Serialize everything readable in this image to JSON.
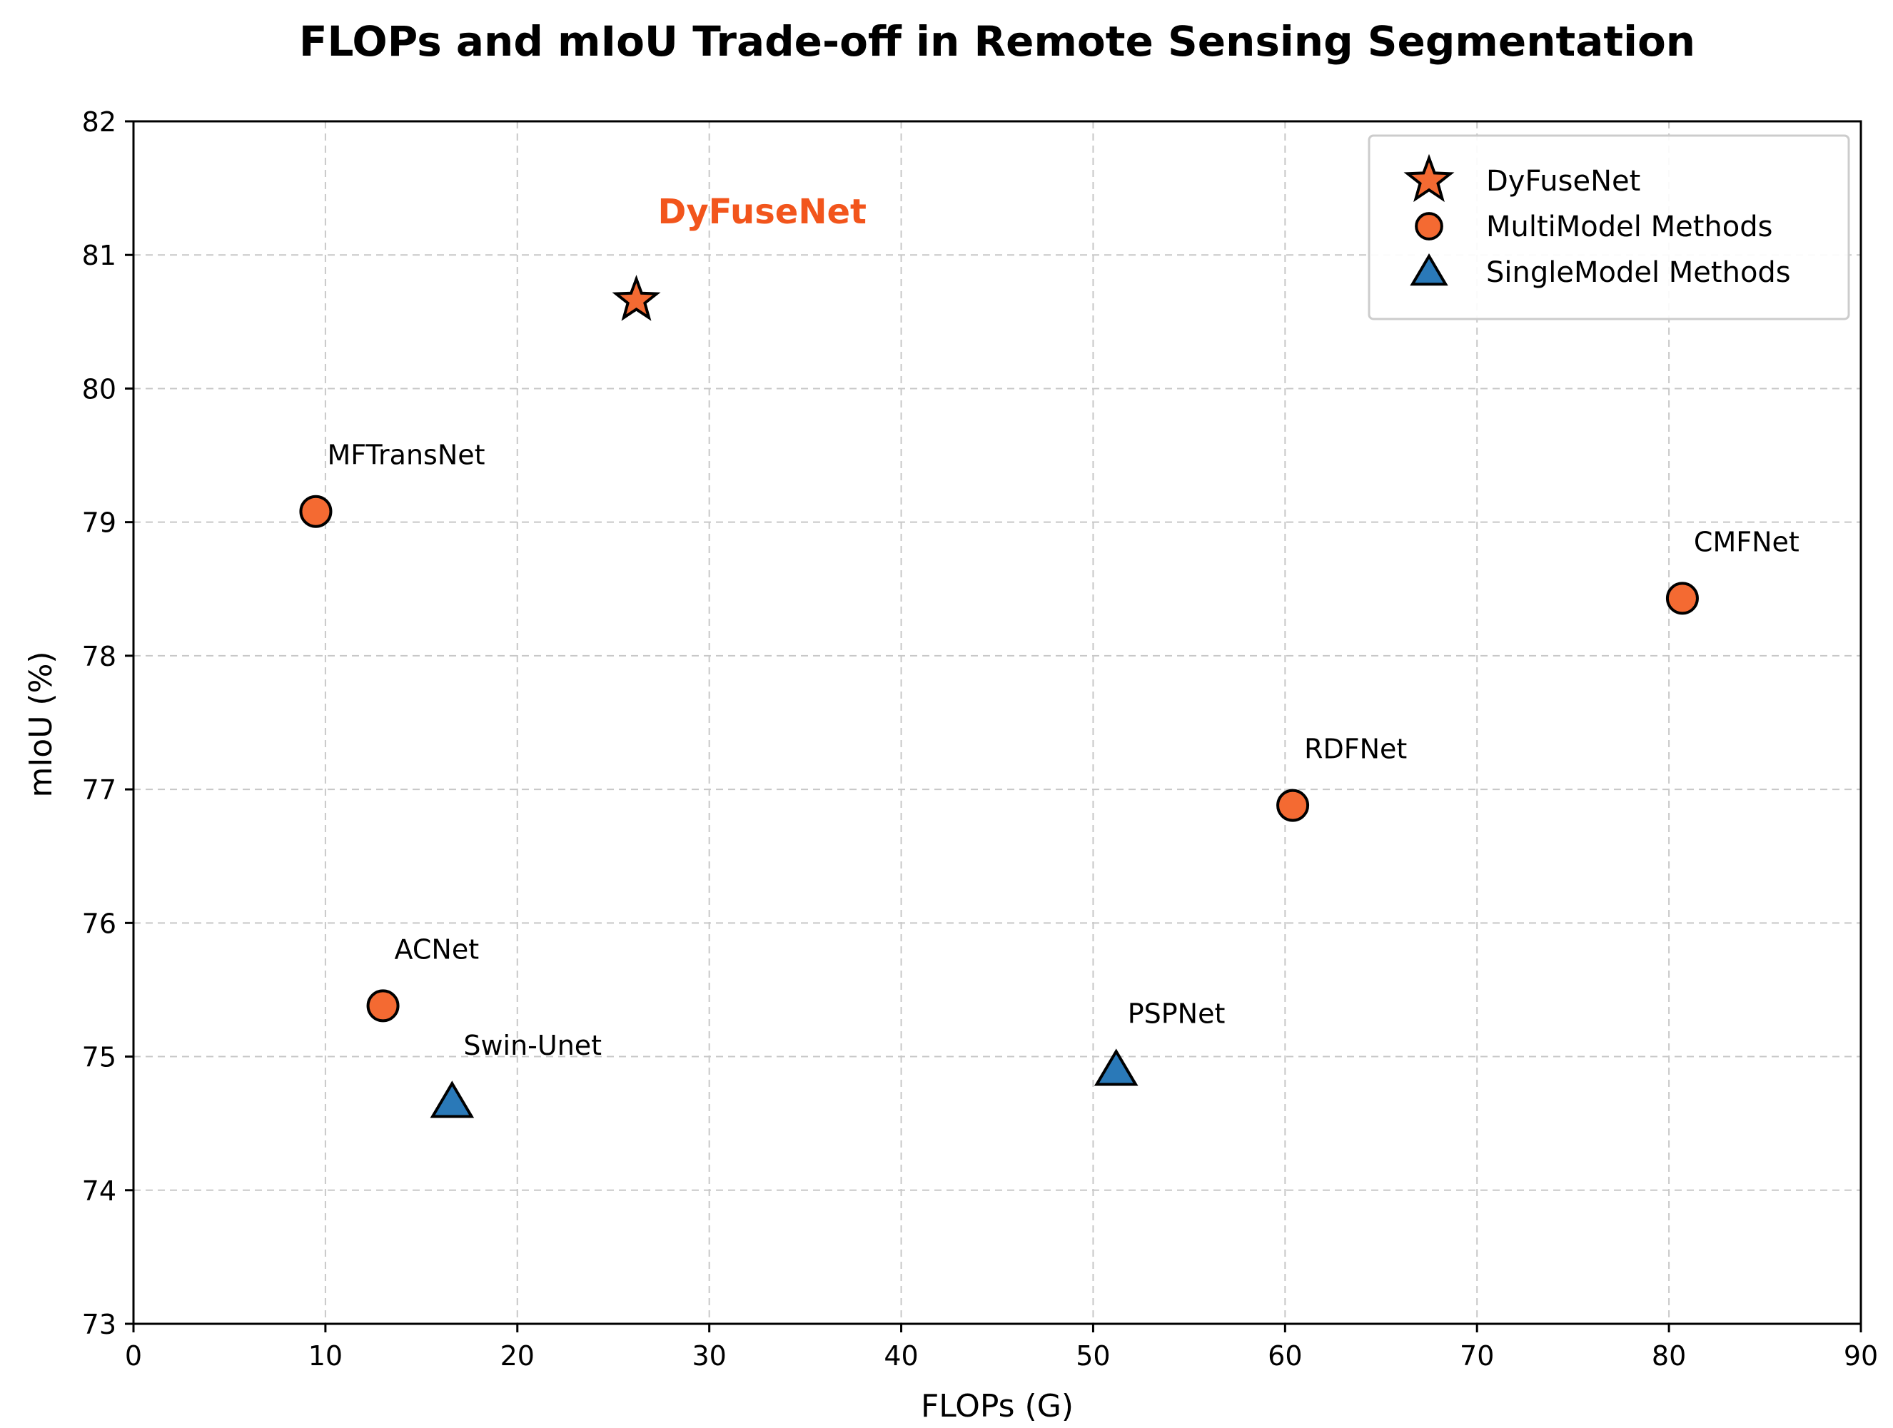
{
  "chart_data": {
    "type": "scatter",
    "title": "FLOPs and mIoU Trade-off in Remote Sensing Segmentation",
    "xlabel": "FLOPs (G)",
    "ylabel": "mIoU (%)",
    "xlim": [
      0,
      90
    ],
    "ylim": [
      73,
      82
    ],
    "xticks": [
      "0",
      "10",
      "20",
      "30",
      "40",
      "50",
      "60",
      "70",
      "80",
      "90"
    ],
    "yticks": [
      "73",
      "74",
      "75",
      "76",
      "77",
      "78",
      "79",
      "80",
      "81",
      "82"
    ],
    "grid": true,
    "legend_position": "top-right",
    "colors": {
      "orange": "#f46a32",
      "blue": "#2a79b8",
      "highlight": "#f2551c",
      "edge": "#000000"
    },
    "series": [
      {
        "name": "DyFuseNet",
        "marker": "star",
        "color": "#f46a32",
        "points": [
          {
            "label": "DyFuseNet",
            "x": 26.2,
            "y": 80.66
          }
        ]
      },
      {
        "name": "MultiModel Methods",
        "marker": "circle",
        "color": "#f46a32",
        "points": [
          {
            "label": "MFTransNet",
            "x": 9.5,
            "y": 79.08
          },
          {
            "label": "ACNet",
            "x": 13.0,
            "y": 75.38
          },
          {
            "label": "RDFNet",
            "x": 60.4,
            "y": 76.88
          },
          {
            "label": "CMFNet",
            "x": 80.7,
            "y": 78.43
          }
        ]
      },
      {
        "name": "SingleModel Methods",
        "marker": "triangle",
        "color": "#2a79b8",
        "points": [
          {
            "label": "Swin-Unet",
            "x": 16.6,
            "y": 74.66
          },
          {
            "label": "PSPNet",
            "x": 51.2,
            "y": 74.9
          }
        ]
      }
    ]
  }
}
